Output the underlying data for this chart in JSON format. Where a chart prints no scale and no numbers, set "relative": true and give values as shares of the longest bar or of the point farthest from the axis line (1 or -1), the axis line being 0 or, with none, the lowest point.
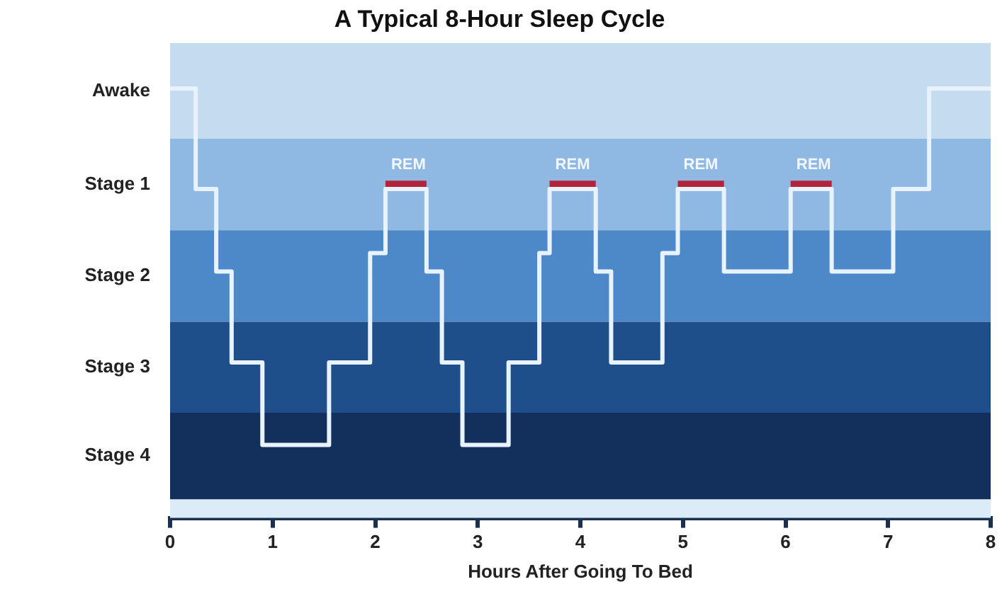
{
  "chart_data": {
    "type": "step",
    "title": "A Typical 8-Hour Sleep Cycle",
    "xlabel": "Hours After Going To Bed",
    "relative": true,
    "series": [
      {
        "color": "#e8f3ff",
        "x": [
          0,
          0.25,
          0.45,
          0.6,
          0.9,
          1.55,
          1.95,
          2.1,
          2.5,
          2.65,
          2.85,
          3.3,
          3.6,
          3.7,
          4.15,
          4.3,
          4.8,
          4.95,
          5.4,
          6.05,
          6.45,
          7.05,
          7.4,
          8
        ],
        "values": [
          1,
          0.766,
          0.574,
          0.362,
          0.17,
          0.362,
          0.617,
          0.766,
          0.574,
          0.362,
          0.17,
          0.362,
          0.617,
          0.766,
          0.574,
          0.362,
          0.617,
          0.766,
          0.574,
          0.766,
          0.574,
          0.766,
          1,
          1
        ]
      },
      {
        "type": "line",
        "color": "#b3243a",
        "x": [
          2.1,
          2.5
        ],
        "values": [
          0.777,
          0.777
        ]
      },
      {
        "type": "line",
        "color": "#b3243a",
        "x": [
          3.7,
          4.15
        ],
        "values": [
          0.777,
          0.777
        ]
      },
      {
        "type": "line",
        "color": "#b3243a",
        "x": [
          4.95,
          5.4
        ],
        "values": [
          0.777,
          0.777
        ]
      },
      {
        "type": "line",
        "color": "#b3243a",
        "x": [
          6.05,
          6.45
        ],
        "values": [
          0.777,
          0.777
        ]
      }
    ],
    "annotations": [
      {
        "text": "REM",
        "x": 2.1,
        "y": 0.777
      },
      {
        "text": "REM",
        "x": 3.7,
        "y": 0.777
      },
      {
        "text": "REM",
        "x": 4.95,
        "y": 0.777
      },
      {
        "text": "REM",
        "x": 6.05,
        "y": 0.777
      }
    ],
    "bands": [
      {
        "axis": "y",
        "from": 0.883,
        "to": 1.106,
        "color": "#c5dcef",
        "label": "Awake"
      },
      {
        "axis": "y",
        "from": 0.67,
        "to": 0.883,
        "color": "#8fb8e2",
        "label": "Stage 1"
      },
      {
        "axis": "y",
        "from": 0.457,
        "to": 0.67,
        "color": "#4d88c8",
        "label": "Stage 2"
      },
      {
        "axis": "y",
        "from": 0.245,
        "to": 0.457,
        "color": "#1f4f8a",
        "label": "Stage 3"
      },
      {
        "axis": "y",
        "from": 0.043,
        "to": 0.245,
        "color": "#132f5c",
        "label": "Stage 4"
      },
      {
        "axis": "y",
        "from": 0,
        "to": 0.043,
        "color": "#dcebf8"
      }
    ],
    "xlim": [
      0,
      8
    ],
    "xticks": [
      0,
      1,
      2,
      3,
      4,
      5,
      6,
      7,
      8
    ],
    "grid": false,
    "legend": false,
    "marker": "none",
    "line_style": "solid"
  }
}
